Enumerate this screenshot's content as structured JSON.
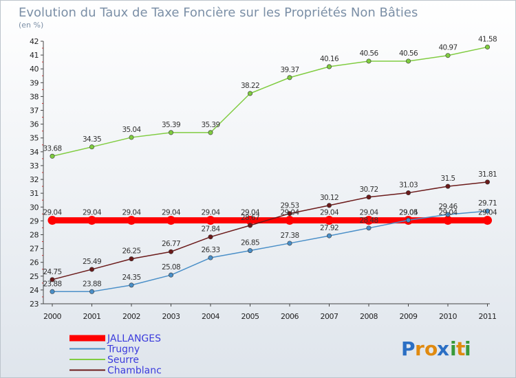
{
  "chart_data": {
    "type": "line",
    "title": "Evolution du Taux de Taxe Foncière sur les Propriétés Non Bâties",
    "subtitle": "(en %)",
    "x": [
      "2000",
      "2001",
      "2002",
      "2003",
      "2004",
      "2005",
      "2006",
      "2007",
      "2008",
      "2009",
      "2010",
      "2011"
    ],
    "ylim": [
      23,
      42
    ],
    "yticks": [
      23,
      24,
      25,
      26,
      27,
      28,
      29,
      30,
      31,
      32,
      33,
      34,
      35,
      36,
      37,
      38,
      39,
      40,
      41,
      42
    ],
    "grid": false,
    "legend_position": "bottom-left",
    "series": [
      {
        "name": "JALLANGES",
        "color": "#ff0000",
        "values": [
          29.04,
          29.04,
          29.04,
          29.04,
          29.04,
          29.04,
          29.04,
          29.04,
          29.04,
          29.04,
          29.04,
          29.04
        ],
        "labels": [
          "29.04",
          "29.04",
          "29.04",
          "29.04",
          "29.04",
          "29.04",
          "29.04",
          "29.04",
          "29.04",
          "29.04",
          "29.04",
          "29.04"
        ]
      },
      {
        "name": "Trugny",
        "color": "#4a8fc8",
        "values": [
          23.88,
          23.88,
          24.35,
          25.08,
          26.33,
          26.85,
          27.38,
          27.92,
          28.48,
          29.05,
          29.46,
          29.71
        ],
        "labels": [
          "23.88",
          "23.88",
          "24.35",
          "25.08",
          "26.33",
          "26.85",
          "27.38",
          "27.92",
          "28.48",
          "29.05",
          "29.46",
          "29.71"
        ]
      },
      {
        "name": "Seurre",
        "color": "#80cc40",
        "values": [
          33.68,
          34.35,
          35.04,
          35.39,
          35.39,
          38.22,
          39.37,
          40.16,
          40.56,
          40.56,
          40.97,
          41.58
        ],
        "labels": [
          "33.68",
          "34.35",
          "35.04",
          "35.39",
          "35.39",
          "38.22",
          "39.37",
          "40.16",
          "40.56",
          "40.56",
          "40.97",
          "41.58"
        ]
      },
      {
        "name": "Chamblanc",
        "color": "#6b1a1a",
        "values": [
          24.75,
          25.49,
          26.25,
          26.77,
          27.84,
          28.67,
          29.53,
          30.12,
          30.72,
          31.03,
          31.5,
          31.81
        ],
        "labels": [
          "24.75",
          "25.49",
          "26.25",
          "26.77",
          "27.84",
          "28.67",
          "29.53",
          "30.12",
          "30.72",
          "31.03",
          "31.5",
          "31.81"
        ]
      }
    ],
    "logo": {
      "text": "Proxiti",
      "letters": [
        "P",
        "r",
        "o",
        "x",
        "i",
        "t",
        "i"
      ],
      "colors": [
        "#2b6fc4",
        "#e08a10",
        "#e08a10",
        "#2b6fc4",
        "#3a9a3a",
        "#e08a10",
        "#3a9a3a"
      ]
    }
  }
}
